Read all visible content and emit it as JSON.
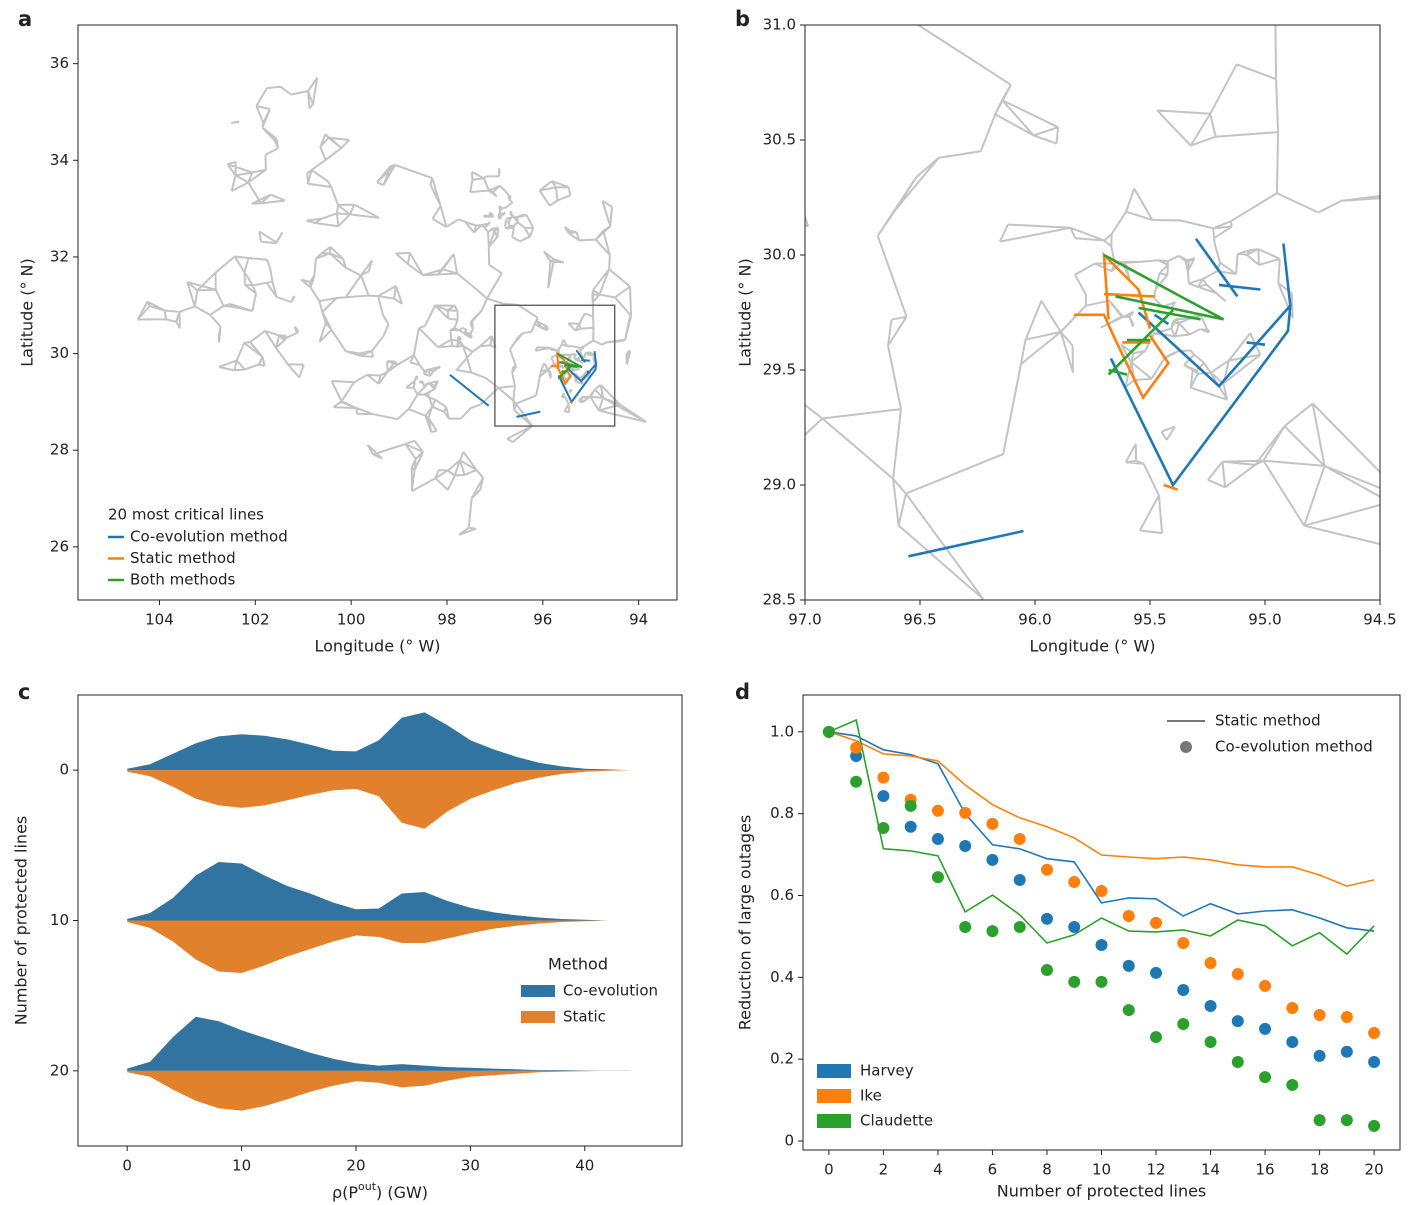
{
  "chart_data": [
    {
      "panel": "a",
      "type": "map",
      "xlabel": "Longitude (° W)",
      "ylabel": "Latitude (° N)",
      "xlim": [
        105.7,
        93.2
      ],
      "ylim": [
        24.9,
        36.8
      ],
      "xticks": [
        104,
        102,
        100,
        98,
        96,
        94
      ],
      "yticks": [
        26,
        28,
        30,
        32,
        34,
        36
      ],
      "legend_title": "20 most critical lines",
      "series": [
        {
          "name": "Co-evolution method",
          "color": "#1f77b4",
          "x": [
            96.55,
            96.05,
            null,
            95.67,
            95.4,
            94.9,
            94.89,
            94.92,
            null,
            95.55,
            95.2,
            94.89,
            null,
            95.3,
            95.12,
            null,
            95.2,
            95.02,
            null,
            95.08,
            95.0,
            null,
            95.48,
            95.42,
            null,
            97.94,
            97.13
          ],
          "y": [
            28.69,
            28.8,
            null,
            29.55,
            29.0,
            29.67,
            29.78,
            30.05,
            null,
            29.75,
            29.43,
            29.78,
            null,
            30.07,
            29.82,
            null,
            29.87,
            29.85,
            null,
            29.62,
            29.61,
            null,
            29.74,
            29.7,
            null,
            29.56,
            28.92
          ]
        },
        {
          "name": "Static method",
          "color": "#ff7f0e",
          "x": [
            95.83,
            95.7,
            95.65,
            95.53,
            95.42,
            95.5,
            null,
            95.68,
            95.7,
            95.55,
            95.5,
            null,
            95.44,
            95.38,
            null,
            95.62,
            95.5,
            null,
            95.7,
            95.48
          ],
          "y": [
            29.74,
            29.74,
            29.63,
            29.38,
            29.53,
            29.65,
            null,
            29.72,
            30.0,
            29.85,
            29.68,
            null,
            29.0,
            28.98,
            null,
            29.62,
            29.62,
            null,
            29.83,
            29.82
          ]
        },
        {
          "name": "Both methods",
          "color": "#2ca02c",
          "x": [
            95.7,
            95.33,
            95.18,
            null,
            95.65,
            95.18,
            null,
            95.55,
            95.28,
            null,
            95.68,
            95.4,
            null,
            95.6,
            95.5,
            null,
            95.68,
            95.6
          ],
          "y": [
            30.0,
            29.8,
            29.72,
            null,
            29.82,
            29.72,
            null,
            29.77,
            29.72,
            null,
            29.48,
            29.76,
            null,
            29.63,
            29.63,
            null,
            29.5,
            29.48
          ]
        }
      ]
    },
    {
      "panel": "b",
      "type": "map",
      "xlabel": "Longitude (° W)",
      "ylabel": "Latitude (° N)",
      "xlim": [
        97.0,
        94.5
      ],
      "ylim": [
        28.5,
        31.0
      ],
      "xticks": [
        {
          "value": 97,
          "label": "97.0"
        },
        96.5,
        {
          "value": 96,
          "label": "96.0"
        },
        95.5,
        {
          "value": 95,
          "label": "95.0"
        },
        94.5
      ],
      "yticks": [
        28.5,
        {
          "value": 29,
          "label": "29.0"
        },
        29.5,
        {
          "value": 30,
          "label": "30.0"
        },
        30.5,
        {
          "value": 31,
          "label": "31.0"
        }
      ]
    },
    {
      "panel": "c",
      "type": "violin",
      "xlabel": [
        "ρ(P",
        "out",
        ") (GW)"
      ],
      "ylabel": "Number of protected lines",
      "xlim": [
        -4.3,
        48.5
      ],
      "ylim": [
        25,
        -5
      ],
      "xticks": [
        0,
        10,
        20,
        30,
        40
      ],
      "yticks": [
        0,
        10,
        20
      ],
      "groups": [
        0,
        10,
        20
      ],
      "legend_title": "Method",
      "x": [
        0,
        2,
        4,
        6,
        8,
        10,
        12,
        14,
        16,
        18,
        20,
        22,
        24,
        26,
        28,
        30,
        32,
        34,
        36,
        38,
        40,
        42,
        44
      ],
      "series": [
        {
          "name": "Co-evolution",
          "color": "#3274a1",
          "values": [
            [
              0.02,
              0.08,
              0.22,
              0.36,
              0.45,
              0.48,
              0.46,
              0.41,
              0.34,
              0.26,
              0.25,
              0.4,
              0.7,
              0.77,
              0.6,
              0.4,
              0.28,
              0.18,
              0.1,
              0.05,
              0.02,
              0.01,
              0
            ],
            [
              0.02,
              0.1,
              0.3,
              0.6,
              0.78,
              0.76,
              0.6,
              0.46,
              0.36,
              0.24,
              0.15,
              0.16,
              0.36,
              0.38,
              0.26,
              0.17,
              0.11,
              0.07,
              0.04,
              0.02,
              0.01,
              0,
              0
            ],
            [
              0.03,
              0.12,
              0.45,
              0.72,
              0.66,
              0.54,
              0.44,
              0.34,
              0.24,
              0.16,
              0.1,
              0.07,
              0.09,
              0.07,
              0.05,
              0.04,
              0.03,
              0.02,
              0.01,
              0.01,
              0.005,
              0,
              0
            ]
          ]
        },
        {
          "name": "Static",
          "color": "#e1812c",
          "values": [
            [
              0.02,
              0.08,
              0.22,
              0.38,
              0.47,
              0.5,
              0.47,
              0.4,
              0.33,
              0.27,
              0.25,
              0.35,
              0.7,
              0.78,
              0.55,
              0.38,
              0.27,
              0.17,
              0.1,
              0.05,
              0.02,
              0.01,
              0
            ],
            [
              0.02,
              0.1,
              0.28,
              0.52,
              0.68,
              0.7,
              0.6,
              0.48,
              0.38,
              0.28,
              0.2,
              0.22,
              0.3,
              0.3,
              0.24,
              0.17,
              0.11,
              0.07,
              0.04,
              0.02,
              0.01,
              0,
              0
            ],
            [
              0.02,
              0.08,
              0.25,
              0.4,
              0.5,
              0.53,
              0.47,
              0.38,
              0.28,
              0.2,
              0.14,
              0.16,
              0.22,
              0.2,
              0.13,
              0.08,
              0.06,
              0.04,
              0.02,
              0.01,
              0.005,
              0,
              0
            ]
          ]
        }
      ]
    },
    {
      "panel": "d",
      "type": "dot_line",
      "xlabel": "Number of protected lines",
      "ylabel": "Reduction of large outages",
      "xlim": [
        -0.95,
        20.95
      ],
      "ylim": [
        -0.022,
        1.09
      ],
      "xticks": [
        0,
        2,
        4,
        6,
        8,
        10,
        12,
        14,
        16,
        18,
        20
      ],
      "yticks": [
        0,
        0.2,
        0.4,
        0.6,
        0.8,
        {
          "value": 1,
          "label": "1.0"
        }
      ],
      "style_legend": [
        "Static method",
        "Co-evolution method"
      ],
      "x": [
        0,
        1,
        2,
        3,
        4,
        5,
        6,
        7,
        8,
        9,
        10,
        11,
        12,
        13,
        14,
        15,
        16,
        17,
        18,
        19,
        20
      ],
      "series": [
        {
          "name": "Harvey",
          "color": "#1f77b4",
          "static": [
            1.0,
            0.99,
            0.956,
            0.944,
            0.922,
            0.8,
            0.724,
            0.714,
            0.69,
            0.682,
            0.582,
            0.594,
            0.592,
            0.55,
            0.58,
            0.555,
            0.562,
            0.565,
            0.545,
            0.521,
            0.513
          ],
          "coevolution": [
            1.0,
            0.941,
            0.843,
            0.768,
            0.738,
            0.721,
            0.687,
            0.638,
            0.543,
            0.523,
            0.479,
            0.428,
            0.411,
            0.369,
            0.33,
            0.293,
            0.274,
            0.242,
            0.208,
            0.218,
            0.193
          ]
        },
        {
          "name": "Ike",
          "color": "#ff7f0e",
          "static": [
            1.0,
            0.978,
            0.946,
            0.941,
            0.929,
            0.87,
            0.822,
            0.79,
            0.768,
            0.741,
            0.699,
            0.694,
            0.69,
            0.694,
            0.687,
            0.675,
            0.67,
            0.67,
            0.65,
            0.623,
            0.638
          ],
          "coevolution": [
            1.0,
            0.961,
            0.888,
            0.834,
            0.807,
            0.802,
            0.775,
            0.738,
            0.663,
            0.633,
            0.611,
            0.55,
            0.533,
            0.484,
            0.435,
            0.408,
            0.379,
            0.325,
            0.308,
            0.303,
            0.264
          ]
        },
        {
          "name": "Claudette",
          "color": "#2ca02c",
          "static": [
            1.0,
            1.029,
            0.714,
            0.709,
            0.697,
            0.56,
            0.601,
            0.553,
            0.484,
            0.504,
            0.545,
            0.513,
            0.511,
            0.516,
            0.501,
            0.54,
            0.526,
            0.477,
            0.509,
            0.457,
            0.526
          ],
          "coevolution": [
            1.0,
            0.878,
            0.765,
            0.819,
            0.645,
            0.523,
            0.513,
            0.523,
            0.418,
            0.389,
            0.389,
            0.32,
            0.254,
            0.286,
            0.242,
            0.193,
            0.156,
            0.137,
            0.051,
            0.051,
            0.037
          ]
        }
      ]
    }
  ]
}
